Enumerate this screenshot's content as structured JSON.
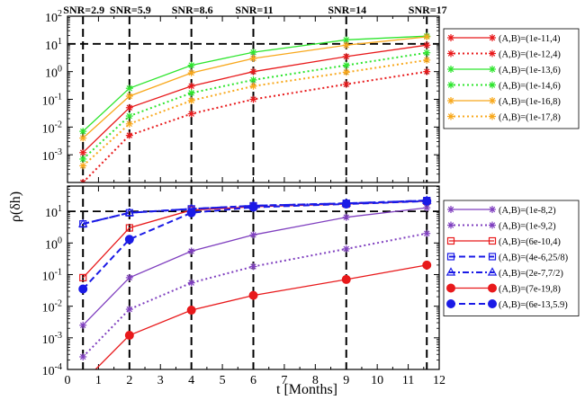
{
  "chart_data": [
    {
      "type": "line",
      "panel": "top",
      "xlim": [
        0,
        12
      ],
      "ylim_log10": [
        -4,
        2
      ],
      "yscale": "log",
      "ylabel": "ρ(δh)",
      "yticks": [
        {
          "base": "10",
          "exp": "-3",
          "value": 0.001
        },
        {
          "base": "10",
          "exp": "-2",
          "value": 0.01
        },
        {
          "base": "10",
          "exp": "-1",
          "value": 0.1
        },
        {
          "base": "10",
          "exp": "0",
          "value": 1
        },
        {
          "base": "10",
          "exp": "1",
          "value": 10
        },
        {
          "base": "10",
          "exp": "2",
          "value": 100
        }
      ],
      "threshold": 10,
      "x": [
        0.5,
        2,
        4,
        6,
        9,
        11.6
      ],
      "series": [
        {
          "name": "(A,B)=(1e-11,4)",
          "color": "#e8191b",
          "dash": "",
          "marker": "star",
          "values": [
            0.0012,
            0.05,
            0.3,
            1.0,
            3.5,
            9.0
          ]
        },
        {
          "name": "(A,B)=(1e-12,4)",
          "color": "#e8191b",
          "dash": "2,3",
          "marker": "star",
          "values": [
            0.0001,
            0.005,
            0.03,
            0.1,
            0.35,
            1.0
          ]
        },
        {
          "name": "(A,B)=(1e-13,6)",
          "color": "#2ee52e",
          "dash": "",
          "marker": "star",
          "values": [
            0.007,
            0.25,
            1.7,
            5.0,
            14.0,
            19.0
          ]
        },
        {
          "name": "(A,B)=(1e-14,6)",
          "color": "#2ee52e",
          "dash": "2,3",
          "marker": "star",
          "values": [
            0.0007,
            0.025,
            0.17,
            0.5,
            1.7,
            4.8
          ]
        },
        {
          "name": "(A,B)=(1e-16,8)",
          "color": "#f8a81c",
          "dash": "",
          "marker": "star",
          "values": [
            0.004,
            0.13,
            0.9,
            3.0,
            9.0,
            18.0
          ]
        },
        {
          "name": "(A,B)=(1e-17,8)",
          "color": "#f8a81c",
          "dash": "2,3",
          "marker": "star",
          "values": [
            0.0004,
            0.013,
            0.09,
            0.3,
            0.95,
            2.6
          ]
        }
      ]
    },
    {
      "type": "line",
      "panel": "bottom",
      "xlim": [
        0,
        12
      ],
      "ylim_log10": [
        -4,
        1.8
      ],
      "yscale": "log",
      "xlabel": "t [Months]",
      "yticks": [
        {
          "base": "10",
          "exp": "-4",
          "value": 0.0001
        },
        {
          "base": "10",
          "exp": "-3",
          "value": 0.001
        },
        {
          "base": "10",
          "exp": "-2",
          "value": 0.01
        },
        {
          "base": "10",
          "exp": "-1",
          "value": 0.1
        },
        {
          "base": "10",
          "exp": "0",
          "value": 1
        },
        {
          "base": "10",
          "exp": "1",
          "value": 10
        }
      ],
      "xticks": [
        "0",
        "1",
        "2",
        "3",
        "4",
        "5",
        "6",
        "7",
        "8",
        "9",
        "10",
        "11",
        "12"
      ],
      "threshold": 10,
      "x": [
        0.5,
        2,
        4,
        6,
        9,
        11.6
      ],
      "series": [
        {
          "name": "(A,B)=(1e-8,2)",
          "color": "#7f3fbf",
          "dash": "",
          "marker": "star",
          "values": [
            0.0025,
            0.08,
            0.55,
            1.8,
            6.5,
            13.0
          ]
        },
        {
          "name": "(A,B)=(1e-9,2)",
          "color": "#7f3fbf",
          "dash": "2,3",
          "marker": "star",
          "values": [
            0.00025,
            0.008,
            0.055,
            0.18,
            0.65,
            2.0
          ]
        },
        {
          "name": "(A,B)=(6e-10,4)",
          "color": "#e8191b",
          "dash": "",
          "marker": "square",
          "values": [
            0.08,
            3.0,
            11.0,
            14.0,
            17.0,
            21.0
          ]
        },
        {
          "name": "(A,B)=(4e-6,25/8)",
          "color": "#1a1ae6",
          "dash": "7,4",
          "marker": "square",
          "values": [
            4.0,
            9.0,
            12.0,
            15.0,
            18.0,
            22.0
          ]
        },
        {
          "name": "(A,B)=(2e-7,7/2)",
          "color": "#1a1ae6",
          "dash": "7,3,2,3",
          "marker": "triangle",
          "values": [
            4.0,
            9.0,
            12.0,
            15.0,
            18.0,
            22.0
          ]
        },
        {
          "name": "(A,B)=(7e-19,8)",
          "color": "#e8191b",
          "dash": "",
          "marker": "circle",
          "values": [
            4e-05,
            0.0012,
            0.0075,
            0.022,
            0.07,
            0.2
          ]
        },
        {
          "name": "(A,B)=(6e-13,5.9)",
          "color": "#1a1ae6",
          "dash": "7,4",
          "marker": "circle",
          "values": [
            0.035,
            1.3,
            9.0,
            13.5,
            17.0,
            21.0
          ]
        }
      ]
    }
  ],
  "snr_markers": [
    {
      "t": 0.5,
      "label": "SNR=2.9"
    },
    {
      "t": 2,
      "label": "SNR=5.9"
    },
    {
      "t": 4,
      "label": "SNR=8.6"
    },
    {
      "t": 6,
      "label": "SNR=11"
    },
    {
      "t": 9,
      "label": "SNR=14"
    },
    {
      "t": 11.6,
      "label": "SNR=17"
    }
  ]
}
